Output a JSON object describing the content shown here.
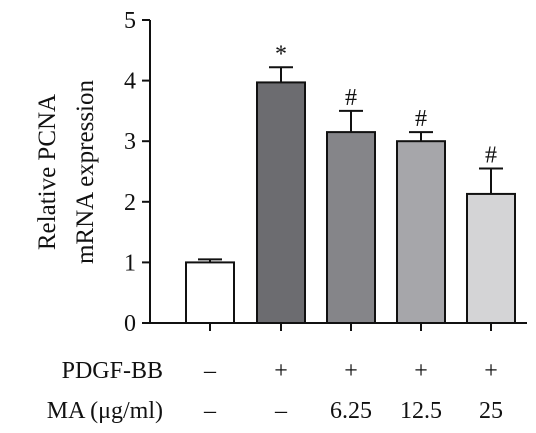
{
  "chart_data": {
    "type": "bar",
    "ylabel_line1": "Relative PCNA",
    "ylabel_line2": "mRNA expression",
    "ylim": [
      0,
      5
    ],
    "yticks": [
      "0",
      "1",
      "2",
      "3",
      "4",
      "5"
    ],
    "grid": false,
    "bars": [
      {
        "value": 1.0,
        "error": 0.05,
        "annotation": "",
        "color": "#ffffff"
      },
      {
        "value": 3.97,
        "error": 0.25,
        "annotation": "*",
        "color": "#6c6c70"
      },
      {
        "value": 3.15,
        "error": 0.35,
        "annotation": "#",
        "color": "#858589"
      },
      {
        "value": 3.0,
        "error": 0.15,
        "annotation": "#",
        "color": "#a6a6aa"
      },
      {
        "value": 2.13,
        "error": 0.42,
        "annotation": "#",
        "color": "#d4d4d6"
      }
    ],
    "condition_rows": [
      {
        "label": "PDGF-BB",
        "values": [
          "–",
          "+",
          "+",
          "+",
          "+"
        ]
      },
      {
        "label": "MA (μg/ml)",
        "values": [
          "–",
          "–",
          "6.25",
          "12.5",
          "25"
        ]
      }
    ]
  }
}
